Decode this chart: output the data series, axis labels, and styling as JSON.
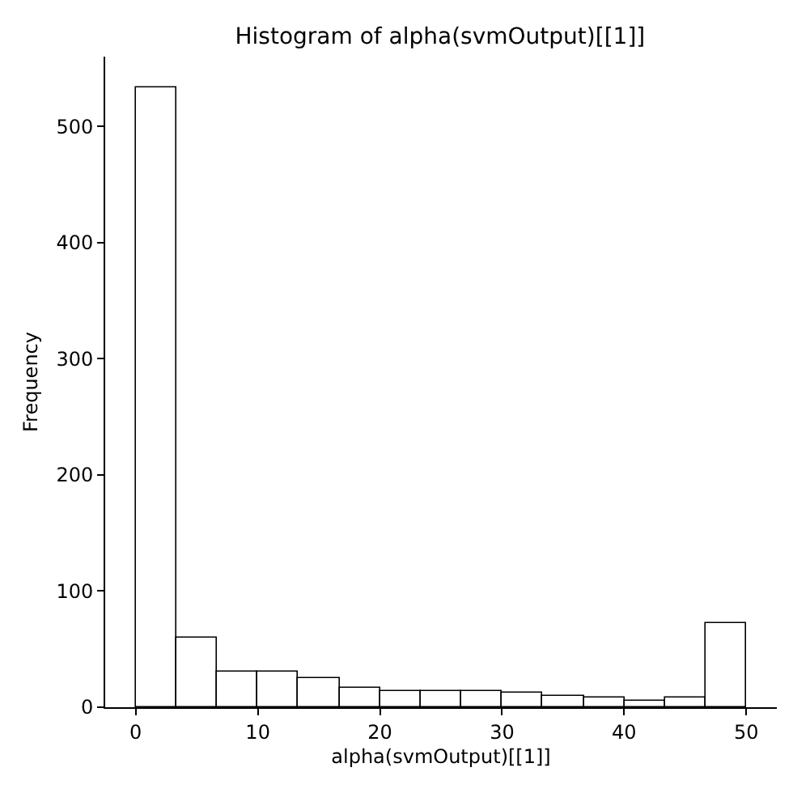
{
  "chart_data": {
    "type": "histogram",
    "title": "Histogram of alpha(svmOutput)[[1]]",
    "xlabel": "alpha(svmOutput)[[1]]",
    "ylabel": "Frequency",
    "bins": [
      0,
      3.33,
      6.67,
      10,
      13.33,
      16.67,
      20,
      23.33,
      26.67,
      30,
      33.33,
      36.67,
      40,
      43.33,
      46.67,
      50
    ],
    "values": [
      533,
      60,
      30,
      30,
      25,
      17,
      14,
      14,
      14,
      12,
      10,
      8,
      5,
      8,
      72
    ],
    "color": "#ffffff",
    "xlim": [
      -2.5,
      52.5
    ],
    "xticks": [
      0,
      10,
      20,
      30,
      40,
      50
    ],
    "ylim": [
      0,
      560
    ],
    "yticks": [
      0,
      100,
      200,
      300,
      400,
      500
    ]
  }
}
